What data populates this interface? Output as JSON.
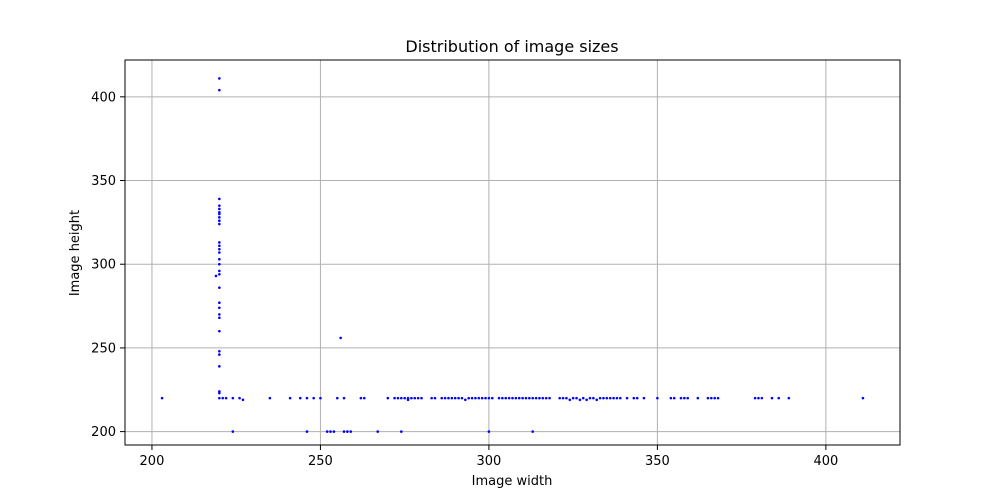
{
  "chart_data": {
    "type": "scatter",
    "title": "Distribution of image sizes",
    "xlabel": "Image width",
    "ylabel": "Image height",
    "xlim": [
      192,
      422
    ],
    "ylim": [
      192,
      422
    ],
    "xticks": [
      200,
      250,
      300,
      350,
      400
    ],
    "yticks": [
      200,
      250,
      300,
      350,
      400
    ],
    "grid": true,
    "marker_color": "#0000ff",
    "points": [
      [
        203,
        220
      ],
      [
        220,
        411
      ],
      [
        220,
        404
      ],
      [
        220,
        339
      ],
      [
        220,
        335
      ],
      [
        220,
        333
      ],
      [
        220,
        331
      ],
      [
        220,
        330
      ],
      [
        220,
        328
      ],
      [
        220,
        326
      ],
      [
        220,
        324
      ],
      [
        220,
        313
      ],
      [
        220,
        311
      ],
      [
        220,
        309
      ],
      [
        220,
        307
      ],
      [
        220,
        303
      ],
      [
        220,
        300
      ],
      [
        220,
        296
      ],
      [
        220,
        294
      ],
      [
        219,
        293
      ],
      [
        220,
        286
      ],
      [
        220,
        277
      ],
      [
        220,
        274
      ],
      [
        220,
        270
      ],
      [
        220,
        268
      ],
      [
        220,
        260
      ],
      [
        220,
        248
      ],
      [
        220,
        246
      ],
      [
        220,
        239
      ],
      [
        220,
        224
      ],
      [
        220,
        223
      ],
      [
        220,
        220
      ],
      [
        221,
        220
      ],
      [
        222,
        220
      ],
      [
        224,
        220
      ],
      [
        226,
        220
      ],
      [
        224,
        200
      ],
      [
        227,
        219
      ],
      [
        235,
        220
      ],
      [
        241,
        220
      ],
      [
        244,
        220
      ],
      [
        246,
        220
      ],
      [
        246,
        200
      ],
      [
        248,
        220
      ],
      [
        250,
        220
      ],
      [
        252,
        200
      ],
      [
        253,
        200
      ],
      [
        254,
        200
      ],
      [
        255,
        220
      ],
      [
        256,
        256
      ],
      [
        257,
        220
      ],
      [
        257,
        200
      ],
      [
        258,
        200
      ],
      [
        259,
        200
      ],
      [
        262,
        220
      ],
      [
        263,
        220
      ],
      [
        267,
        200
      ],
      [
        270,
        220
      ],
      [
        272,
        220
      ],
      [
        273,
        220
      ],
      [
        274,
        220
      ],
      [
        275,
        220
      ],
      [
        276,
        220
      ],
      [
        276,
        219
      ],
      [
        277,
        220
      ],
      [
        278,
        220
      ],
      [
        279,
        220
      ],
      [
        274,
        200
      ],
      [
        280,
        220
      ],
      [
        283,
        220
      ],
      [
        284,
        220
      ],
      [
        286,
        220
      ],
      [
        287,
        220
      ],
      [
        288,
        220
      ],
      [
        289,
        220
      ],
      [
        290,
        220
      ],
      [
        291,
        220
      ],
      [
        292,
        220
      ],
      [
        293,
        219
      ],
      [
        294,
        220
      ],
      [
        295,
        220
      ],
      [
        296,
        220
      ],
      [
        297,
        220
      ],
      [
        298,
        220
      ],
      [
        299,
        220
      ],
      [
        300,
        220
      ],
      [
        301,
        220
      ],
      [
        300,
        200
      ],
      [
        303,
        220
      ],
      [
        304,
        220
      ],
      [
        305,
        220
      ],
      [
        306,
        220
      ],
      [
        307,
        220
      ],
      [
        308,
        220
      ],
      [
        309,
        220
      ],
      [
        310,
        220
      ],
      [
        311,
        220
      ],
      [
        312,
        220
      ],
      [
        313,
        220
      ],
      [
        314,
        220
      ],
      [
        315,
        220
      ],
      [
        316,
        220
      ],
      [
        317,
        220
      ],
      [
        313,
        200
      ],
      [
        318,
        220
      ],
      [
        321,
        220
      ],
      [
        322,
        220
      ],
      [
        323,
        220
      ],
      [
        324,
        219
      ],
      [
        325,
        220
      ],
      [
        326,
        220
      ],
      [
        327,
        219
      ],
      [
        328,
        220
      ],
      [
        329,
        219
      ],
      [
        330,
        220
      ],
      [
        331,
        220
      ],
      [
        332,
        219
      ],
      [
        333,
        220
      ],
      [
        334,
        220
      ],
      [
        335,
        220
      ],
      [
        336,
        220
      ],
      [
        337,
        220
      ],
      [
        338,
        220
      ],
      [
        339,
        220
      ],
      [
        341,
        220
      ],
      [
        343,
        220
      ],
      [
        344,
        220
      ],
      [
        346,
        220
      ],
      [
        350,
        220
      ],
      [
        354,
        220
      ],
      [
        355,
        220
      ],
      [
        357,
        220
      ],
      [
        358,
        220
      ],
      [
        359,
        220
      ],
      [
        362,
        220
      ],
      [
        365,
        220
      ],
      [
        366,
        220
      ],
      [
        367,
        220
      ],
      [
        368,
        220
      ],
      [
        379,
        220
      ],
      [
        380,
        220
      ],
      [
        381,
        220
      ],
      [
        384,
        220
      ],
      [
        386,
        220
      ],
      [
        389,
        220
      ],
      [
        411,
        220
      ]
    ]
  }
}
